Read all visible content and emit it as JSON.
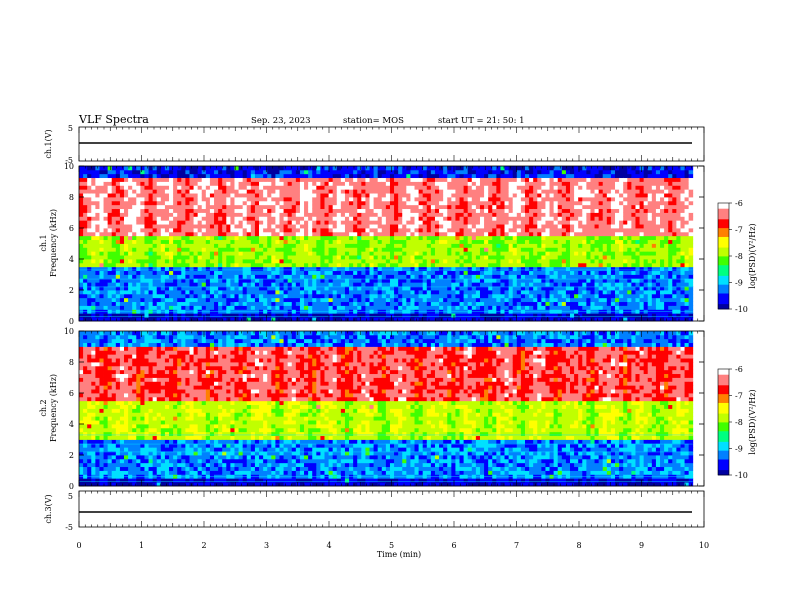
{
  "header": {
    "title": "VLF Spectra",
    "date": "Sep. 23, 2023",
    "station": "station= MOS",
    "start_ut": "start  UT  =   21: 50: 1"
  },
  "colors": {
    "colormap": [
      "#000000",
      "#0000a0",
      "#0000ff",
      "#0080ff",
      "#00e0ff",
      "#00ff80",
      "#40ff00",
      "#c0ff00",
      "#ffff00",
      "#ff8000",
      "#ff0000",
      "#ff8080",
      "#ffffff"
    ]
  },
  "chart_data": [
    {
      "type": "line",
      "ylabel": "ch.1(V)",
      "ylim": [
        -5,
        5
      ],
      "yticks": [
        "5",
        "-5"
      ],
      "xlim": [
        0,
        10
      ],
      "series": [
        {
          "values_description_none": true,
          "x": [
            0,
            9.8
          ],
          "y": [
            0,
            0
          ]
        }
      ]
    },
    {
      "type": "heatmap",
      "ylabel_top": "ch.1",
      "ylabel": "Frequency (kHz)",
      "ylim": [
        0,
        10
      ],
      "yticks": [
        "0",
        "2",
        "4",
        "6",
        "8",
        "10"
      ],
      "xlim": [
        0,
        10
      ],
      "colorbar": {
        "label": "log(PSD)(V²/Hz)",
        "range": [
          -10,
          -6
        ],
        "ticks": [
          "-6",
          "-7",
          "-8",
          "-9",
          "-10"
        ]
      }
    },
    {
      "type": "heatmap",
      "ylabel_top": "ch.2",
      "ylabel": "Frequency (kHz)",
      "ylim": [
        0,
        10
      ],
      "yticks": [
        "0",
        "2",
        "4",
        "6",
        "8",
        "10"
      ],
      "xlim": [
        0,
        10
      ],
      "colorbar": {
        "label": "log(PSD)(V²/Hz)",
        "range": [
          -10,
          -6
        ],
        "ticks": [
          "-6",
          "-7",
          "-8",
          "-9",
          "-10"
        ]
      }
    },
    {
      "type": "line",
      "ylabel": "ch.3(V)",
      "ylim": [
        -5,
        5
      ],
      "yticks": [
        "5",
        "-5"
      ],
      "xlim": [
        0,
        10
      ],
      "xlabel": "Time (min)",
      "xticks": [
        "0",
        "1",
        "2",
        "3",
        "4",
        "5",
        "6",
        "7",
        "8",
        "9",
        "10"
      ],
      "series": [
        {
          "x": [
            0,
            9.8
          ],
          "y": [
            0,
            0
          ]
        }
      ]
    }
  ]
}
